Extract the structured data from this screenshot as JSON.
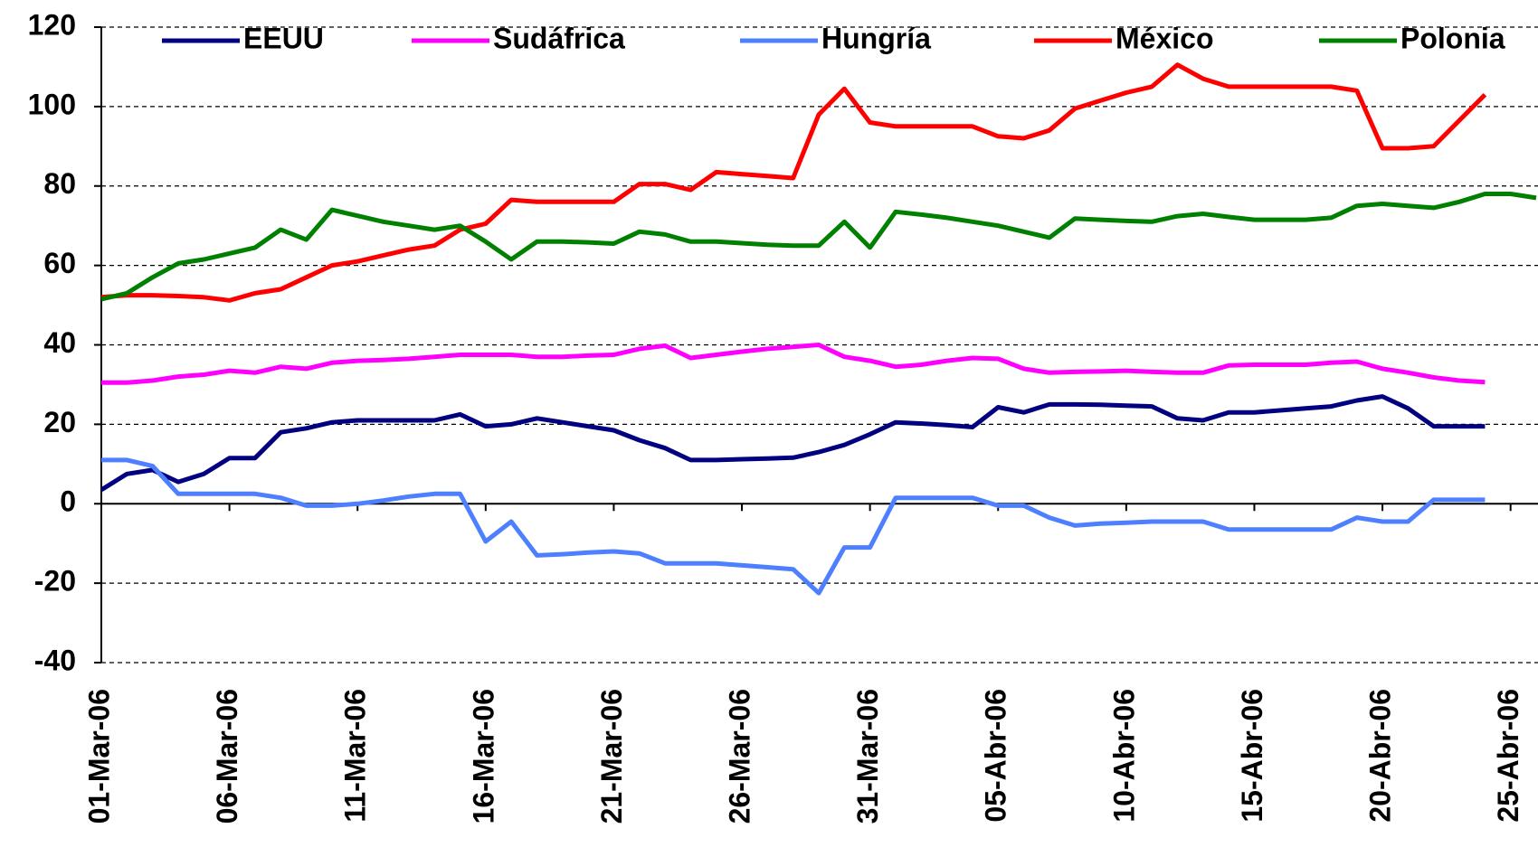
{
  "chart_data": {
    "type": "line",
    "categories": [
      "01-Mar-06",
      null,
      null,
      null,
      null,
      "06-Mar-06",
      null,
      null,
      null,
      null,
      "11-Mar-06",
      null,
      null,
      null,
      null,
      "16-Mar-06",
      null,
      null,
      null,
      null,
      "21-Mar-06",
      null,
      null,
      null,
      null,
      "26-Mar-06",
      null,
      null,
      null,
      null,
      "31-Mar-06",
      null,
      null,
      null,
      null,
      "05-Abr-06",
      null,
      null,
      null,
      null,
      "10-Abr-06",
      null,
      null,
      null,
      null,
      "15-Abr-06",
      null,
      null,
      null,
      null,
      "20-Abr-06",
      null,
      null,
      null,
      null,
      "25-Abr-06",
      null
    ],
    "series": [
      {
        "name": "EEUU",
        "color": "#000080",
        "values": [
          3.5,
          7.5,
          8.5,
          5.5,
          7.5,
          11.5,
          11.5,
          18,
          19,
          20.5,
          21,
          21,
          21,
          21,
          22.5,
          19.5,
          20,
          21.5,
          20.5,
          19.5,
          18.5,
          16,
          14,
          11,
          11,
          11.2,
          11.4,
          11.6,
          13,
          14.8,
          17.5,
          20.5,
          20.2,
          19.8,
          19.3,
          24.3,
          23,
          25,
          25,
          24.9,
          24.7,
          24.5,
          21.5,
          21,
          23,
          23,
          23.5,
          24,
          24.5,
          26,
          27,
          24,
          19.5,
          19.5,
          19.5,
          null,
          null
        ]
      },
      {
        "name": "Sudáfrica",
        "color": "#ff00ff",
        "values": [
          30.5,
          30.5,
          31,
          32,
          32.5,
          33.5,
          33,
          34.5,
          34,
          35.5,
          36,
          36.2,
          36.5,
          37,
          37.5,
          37.5,
          37.5,
          37,
          37,
          37.3,
          37.5,
          39,
          39.8,
          36.7,
          37.5,
          38.3,
          39,
          39.5,
          40,
          37,
          36,
          34.5,
          35,
          36,
          36.7,
          36.5,
          34,
          33,
          33.2,
          33.3,
          33.5,
          33.2,
          33,
          33,
          34.8,
          35,
          35,
          35,
          35.5,
          35.8,
          34,
          33,
          31.8,
          31,
          30.6,
          null,
          null
        ]
      },
      {
        "name": "Hungría",
        "color": "#4d7fff",
        "values": [
          11,
          11,
          9.5,
          2.5,
          2.5,
          2.5,
          2.5,
          1.5,
          -0.5,
          -0.5,
          0,
          0.8,
          1.8,
          2.5,
          2.5,
          -9.5,
          -4.5,
          -13,
          -12.7,
          -12.3,
          -12,
          -12.5,
          -15,
          -15,
          -15,
          -15.5,
          -16,
          -16.5,
          -22.5,
          -11,
          -11,
          1.5,
          1.5,
          1.5,
          1.5,
          -0.5,
          -0.5,
          -3.5,
          -5.5,
          -5,
          -4.8,
          -4.5,
          -4.5,
          -4.5,
          -6.5,
          -6.5,
          -6.5,
          -6.5,
          -6.5,
          -3.5,
          -4.5,
          -4.5,
          1,
          1,
          1,
          null,
          null
        ]
      },
      {
        "name": "México",
        "color": "#ff0000",
        "values": [
          52,
          52.5,
          52.5,
          52.3,
          52,
          51.2,
          53,
          54,
          57,
          60,
          61,
          62.5,
          64,
          65,
          69,
          70.5,
          76.5,
          76,
          76,
          76,
          76,
          80.5,
          80.5,
          79,
          83.5,
          83,
          82.5,
          82,
          98,
          104.5,
          96,
          95,
          95,
          95,
          95,
          92.5,
          92,
          94,
          99.5,
          101.5,
          103.5,
          105,
          110.5,
          107,
          105,
          105,
          105,
          105,
          105,
          104,
          89.5,
          89.5,
          90,
          96.5,
          103,
          null,
          null
        ]
      },
      {
        "name": "Polonia",
        "color": "#008000",
        "values": [
          51.5,
          53,
          57,
          60.5,
          61.5,
          63,
          64.5,
          69,
          66.5,
          74,
          72.5,
          71,
          70,
          69,
          70,
          66,
          61.5,
          66,
          66,
          65.8,
          65.5,
          68.5,
          67.8,
          66,
          66,
          65.6,
          65.2,
          65,
          65,
          71,
          64.5,
          73.5,
          72.8,
          72,
          71,
          70,
          68.5,
          67,
          71.8,
          71.5,
          71.2,
          71,
          72.4,
          73,
          72.2,
          71.5,
          71.5,
          71.5,
          72,
          75,
          75.5,
          75,
          74.5,
          76,
          78,
          78,
          77
        ]
      }
    ],
    "ylim": [
      -40,
      120
    ],
    "yticks": [
      -40,
      -20,
      0,
      20,
      40,
      60,
      80,
      100,
      120
    ],
    "grid": true,
    "legend": "top"
  }
}
